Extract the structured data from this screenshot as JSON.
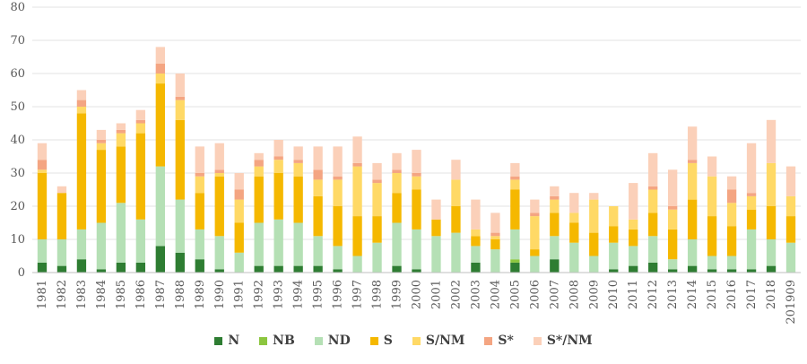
{
  "chart_data": {
    "type": "bar",
    "stacked": true,
    "title": "",
    "xlabel": "",
    "ylabel": "",
    "ylim": [
      0,
      80
    ],
    "yticks": [
      0,
      10,
      20,
      30,
      40,
      50,
      60,
      70,
      80
    ],
    "categories": [
      "1981",
      "1982",
      "1983",
      "1984",
      "1985",
      "1986",
      "1987",
      "1988",
      "1989",
      "1990",
      "1991",
      "1992",
      "1993",
      "1994",
      "1995",
      "1996",
      "1997",
      "1998",
      "1999",
      "2000",
      "2001",
      "2002",
      "2003",
      "2004",
      "2005",
      "2006",
      "2007",
      "2008",
      "2009",
      "2010",
      "2011",
      "2012",
      "2013",
      "2014",
      "2015",
      "2016",
      "2017",
      "2018",
      "201909"
    ],
    "series": [
      {
        "name": "N",
        "color": "#2e7d32",
        "values": [
          3,
          2,
          4,
          1,
          3,
          3,
          8,
          6,
          4,
          1,
          0,
          2,
          2,
          2,
          2,
          1,
          0,
          0,
          2,
          1,
          0,
          0,
          3,
          0,
          3,
          0,
          4,
          0,
          0,
          1,
          2,
          3,
          1,
          2,
          1,
          1,
          1,
          2,
          0
        ]
      },
      {
        "name": "NB",
        "color": "#8cc63f",
        "values": [
          0,
          0,
          0,
          0,
          0,
          0,
          0,
          0,
          0,
          0,
          0,
          0,
          0,
          0,
          0,
          0,
          0,
          0,
          0,
          0,
          0,
          0,
          0,
          0,
          1,
          0,
          0,
          0,
          0,
          0,
          0,
          0,
          0,
          0,
          0,
          0,
          0,
          0,
          0
        ]
      },
      {
        "name": "ND",
        "color": "#b5e0b5",
        "values": [
          7,
          8,
          9,
          14,
          18,
          13,
          24,
          16,
          9,
          10,
          6,
          13,
          14,
          13,
          9,
          7,
          5,
          9,
          13,
          12,
          11,
          12,
          5,
          7,
          9,
          5,
          7,
          9,
          5,
          8,
          6,
          8,
          3,
          8,
          4,
          4,
          12,
          8,
          9
        ]
      },
      {
        "name": "S",
        "color": "#f5b800",
        "values": [
          20,
          14,
          35,
          22,
          17,
          26,
          25,
          24,
          11,
          18,
          9,
          14,
          14,
          14,
          12,
          12,
          12,
          8,
          9,
          12,
          5,
          8,
          3,
          3,
          12,
          2,
          7,
          6,
          7,
          5,
          5,
          7,
          9,
          12,
          12,
          9,
          6,
          10,
          8
        ]
      },
      {
        "name": "S/NM",
        "color": "#ffd966",
        "values": [
          1,
          0,
          2,
          2,
          4,
          3,
          3,
          6,
          5,
          1,
          7,
          3,
          4,
          4,
          5,
          8,
          15,
          10,
          6,
          4,
          0,
          8,
          2,
          1,
          3,
          10,
          4,
          3,
          10,
          6,
          3,
          7,
          6,
          11,
          12,
          7,
          4,
          13,
          6
        ]
      },
      {
        "name": "S*",
        "color": "#f4a582",
        "values": [
          3,
          0,
          2,
          1,
          1,
          1,
          3,
          1,
          1,
          1,
          3,
          2,
          1,
          1,
          3,
          1,
          1,
          1,
          1,
          1,
          0,
          0,
          0,
          1,
          1,
          1,
          1,
          0,
          0,
          0,
          0,
          1,
          1,
          1,
          0,
          4,
          1,
          0,
          0
        ]
      },
      {
        "name": "S*/NM",
        "color": "#fbd0b9",
        "values": [
          5,
          2,
          3,
          3,
          2,
          3,
          5,
          7,
          8,
          8,
          5,
          2,
          5,
          4,
          7,
          9,
          8,
          5,
          5,
          7,
          6,
          6,
          9,
          6,
          4,
          4,
          3,
          6,
          2,
          0,
          11,
          10,
          11,
          10,
          6,
          4,
          15,
          13,
          9
        ]
      }
    ],
    "legend": "bottom-center"
  }
}
